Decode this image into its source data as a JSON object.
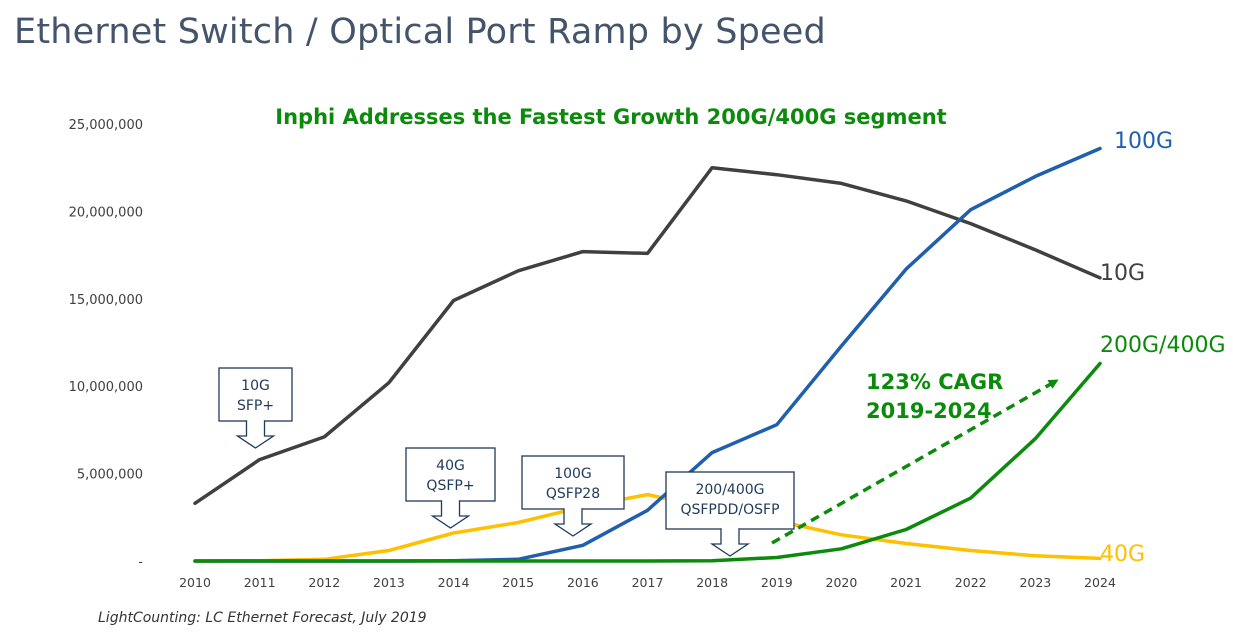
{
  "title": "Ethernet Switch / Optical Port Ramp by Speed",
  "source": "LightCounting: LC Ethernet Forecast, July 2019",
  "chart_data": {
    "type": "line",
    "subtitle": "Inphi Addresses the Fastest Growth 200G/400G segment",
    "x": [
      2010,
      2011,
      2012,
      2013,
      2014,
      2015,
      2016,
      2017,
      2018,
      2019,
      2020,
      2021,
      2022,
      2023,
      2024
    ],
    "ylim": [
      0,
      25000000
    ],
    "yticks": [
      0,
      5000000,
      10000000,
      15000000,
      20000000,
      25000000
    ],
    "ytick_labels": [
      "-",
      "5,000,000",
      "10,000,000",
      "15,000,000",
      "20,000,000",
      "25,000,000"
    ],
    "grid": false,
    "series": [
      {
        "name": "10G",
        "color": "#404040",
        "values": [
          3300000,
          5800000,
          7100000,
          10200000,
          14900000,
          16600000,
          17700000,
          17600000,
          22500000,
          22100000,
          21600000,
          20600000,
          19300000,
          17800000,
          16200000
        ]
      },
      {
        "name": "100G",
        "color": "#1f5fae",
        "values": [
          0,
          0,
          0,
          0,
          20000,
          100000,
          900000,
          2900000,
          6200000,
          7800000,
          12300000,
          16700000,
          20100000,
          22000000,
          23600000
        ]
      },
      {
        "name": "40G",
        "color": "#ffc000",
        "values": [
          0,
          20000,
          100000,
          600000,
          1600000,
          2200000,
          3100000,
          3800000,
          3000000,
          2300000,
          1500000,
          1000000,
          600000,
          300000,
          150000
        ]
      },
      {
        "name": "200G/400G",
        "color": "#0c8a0c",
        "values": [
          0,
          0,
          0,
          0,
          0,
          0,
          0,
          0,
          20000,
          200000,
          700000,
          1800000,
          3600000,
          7000000,
          11300000
        ]
      }
    ],
    "annotations": {
      "cagr_line1": "123% CAGR",
      "cagr_line2": "2019-2024",
      "callouts": [
        {
          "line1": "10G",
          "line2": "SFP+"
        },
        {
          "line1": "40G",
          "line2": "QSFP+"
        },
        {
          "line1": "100G",
          "line2": "QSFP28"
        },
        {
          "line1": "200/400G",
          "line2": "QSFPDD/OSFP"
        }
      ]
    }
  }
}
